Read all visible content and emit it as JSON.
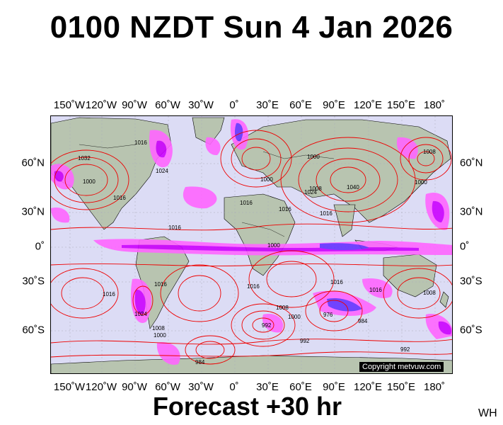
{
  "header": {
    "title": "0100 NZDT Sun 4 Jan 2026"
  },
  "map": {
    "longitude_labels": [
      "150˚W",
      "120˚W",
      "90˚W",
      "60˚W",
      "30˚W",
      "0˚",
      "30˚E",
      "60˚E",
      "90˚E",
      "120˚E",
      "150˚E",
      "180˚"
    ],
    "latitude_labels": [
      "60˚N",
      "30˚N",
      "0˚",
      "30˚S",
      "60˚S"
    ],
    "isobar_labels": [
      "1016",
      "1032",
      "1000",
      "1016",
      "1024",
      "1016",
      "1000",
      "1016",
      "1000",
      "1016",
      "1008",
      "1000",
      "1024",
      "1040",
      "1016",
      "1008",
      "1000",
      "1016",
      "1016",
      "1024",
      "1008",
      "1016",
      "1000",
      "1016",
      "1008",
      "1000",
      "976",
      "984",
      "992",
      "1016",
      "1008",
      "984",
      "992",
      "992"
    ],
    "colors": {
      "ocean": "#dcdcf5",
      "land": "#b8c4b0",
      "isobar": "#ee0000",
      "precip_light": "#ff66ff",
      "precip_medium": "#cc00ff",
      "precip_heavy": "#6633ff",
      "coastline": "#000000"
    },
    "copyright": "Copyright metvuw.com"
  },
  "footer": {
    "forecast": "Forecast +30 hr",
    "model_code": "WH"
  }
}
